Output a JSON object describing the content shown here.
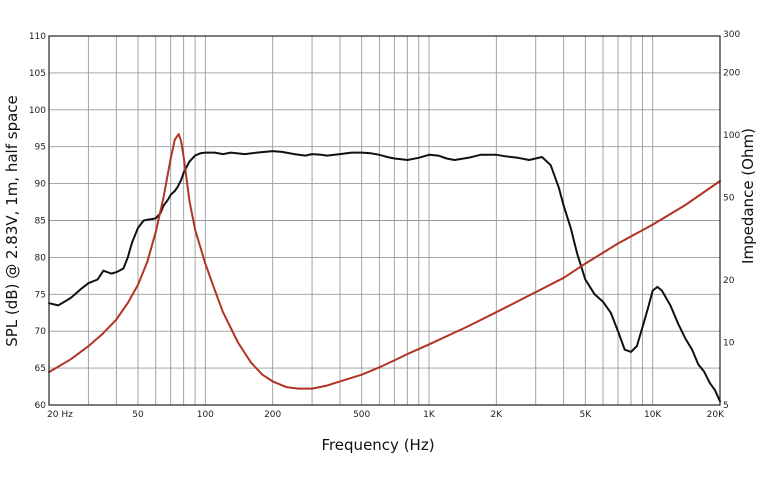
{
  "chart_data": {
    "type": "line",
    "title": "",
    "xlabel": "Frequency (Hz)",
    "ylabel": "SPL (dB) @ 2.83V, 1m, half space",
    "y2label": "Impedance (Ohm)",
    "x_scale": "log",
    "xlim": [
      20,
      20000
    ],
    "ylim": [
      60,
      110
    ],
    "y2_scale": "log",
    "y2lim": [
      5,
      300
    ],
    "grid": true,
    "legend": "none",
    "x_ticks": [
      {
        "value": 20,
        "label": "20  Hz"
      },
      {
        "value": 50,
        "label": "50"
      },
      {
        "value": 100,
        "label": "100"
      },
      {
        "value": 200,
        "label": "200"
      },
      {
        "value": 500,
        "label": "500"
      },
      {
        "value": 1000,
        "label": "1K"
      },
      {
        "value": 2000,
        "label": "2K"
      },
      {
        "value": 5000,
        "label": "5K"
      },
      {
        "value": 10000,
        "label": "10K"
      },
      {
        "value": 20000,
        "label": "20K"
      }
    ],
    "y_ticks": [
      {
        "value": 60,
        "label": "60"
      },
      {
        "value": 65,
        "label": "65"
      },
      {
        "value": 70,
        "label": "70"
      },
      {
        "value": 75,
        "label": "75"
      },
      {
        "value": 80,
        "label": "80"
      },
      {
        "value": 85,
        "label": "85"
      },
      {
        "value": 90,
        "label": "90"
      },
      {
        "value": 95,
        "label": "95"
      },
      {
        "value": 100,
        "label": "100"
      },
      {
        "value": 105,
        "label": "105"
      },
      {
        "value": 110,
        "label": "110"
      }
    ],
    "y2_ticks": [
      {
        "value": 5,
        "label": "5"
      },
      {
        "value": 10,
        "label": "10"
      },
      {
        "value": 20,
        "label": "20"
      },
      {
        "value": 50,
        "label": "50"
      },
      {
        "value": 100,
        "label": "100"
      },
      {
        "value": 200,
        "label": "200"
      },
      {
        "value": 300,
        "label": "300"
      }
    ],
    "series": [
      {
        "axis": "left",
        "color": "#111111",
        "x": [
          20,
          22,
          25,
          28,
          30,
          33,
          35,
          38,
          40,
          43,
          45,
          47,
          50,
          53,
          55,
          58,
          60,
          63,
          65,
          68,
          70,
          73,
          75,
          78,
          80,
          85,
          90,
          95,
          100,
          110,
          120,
          130,
          150,
          170,
          200,
          220,
          250,
          280,
          300,
          330,
          350,
          400,
          450,
          500,
          550,
          600,
          650,
          700,
          750,
          800,
          900,
          1000,
          1100,
          1200,
          1300,
          1500,
          1700,
          2000,
          2200,
          2500,
          2800,
          3000,
          3200,
          3500,
          3800,
          4000,
          4300,
          4600,
          5000,
          5500,
          6000,
          6500,
          7000,
          7500,
          8000,
          8500,
          9000,
          9500,
          10000,
          10500,
          11000,
          12000,
          13000,
          14000,
          15000,
          16000,
          17000,
          18000,
          19000,
          20000
        ],
        "y": [
          73.8,
          73.5,
          74.5,
          75.8,
          76.5,
          77.0,
          78.2,
          77.8,
          78.0,
          78.5,
          80.0,
          82.0,
          84.0,
          85.0,
          85.1,
          85.2,
          85.3,
          86.0,
          87.0,
          87.8,
          88.5,
          89.0,
          89.5,
          90.5,
          91.5,
          93.0,
          93.8,
          94.1,
          94.2,
          94.2,
          94.0,
          94.2,
          94.0,
          94.2,
          94.4,
          94.3,
          94.0,
          93.8,
          94.0,
          93.9,
          93.8,
          94.0,
          94.2,
          94.2,
          94.1,
          93.9,
          93.6,
          93.4,
          93.3,
          93.2,
          93.5,
          93.9,
          93.8,
          93.4,
          93.2,
          93.5,
          93.9,
          93.9,
          93.7,
          93.5,
          93.2,
          93.4,
          93.6,
          92.5,
          89.5,
          87.0,
          84.0,
          80.5,
          77.0,
          75.0,
          74.0,
          72.5,
          70.0,
          67.5,
          67.2,
          68.0,
          70.5,
          73.0,
          75.5,
          76.0,
          75.5,
          73.5,
          71.0,
          69.0,
          67.5,
          65.5,
          64.5,
          63.0,
          62.0,
          60.5
        ]
      },
      {
        "axis": "right",
        "color": "#b03424",
        "x": [
          20,
          25,
          30,
          35,
          40,
          45,
          50,
          55,
          60,
          65,
          70,
          73,
          76,
          78,
          80,
          85,
          90,
          100,
          110,
          120,
          140,
          160,
          180,
          200,
          230,
          260,
          300,
          350,
          400,
          500,
          600,
          700,
          800,
          1000,
          1500,
          2000,
          3000,
          4000,
          5000,
          7000,
          10000,
          14000,
          20000
        ],
        "y": [
          7.2,
          8.3,
          9.6,
          11.1,
          12.9,
          15.5,
          19.0,
          24.5,
          34.0,
          50.0,
          77.0,
          95.0,
          101.0,
          93.0,
          78.0,
          48.0,
          35.0,
          24.0,
          18.0,
          14.0,
          10.0,
          8.0,
          7.0,
          6.5,
          6.1,
          6.0,
          6.0,
          6.2,
          6.5,
          7.0,
          7.6,
          8.2,
          8.8,
          9.8,
          12.0,
          14.0,
          17.5,
          20.5,
          24.0,
          30.0,
          37.0,
          46.0,
          60.0
        ]
      }
    ]
  }
}
